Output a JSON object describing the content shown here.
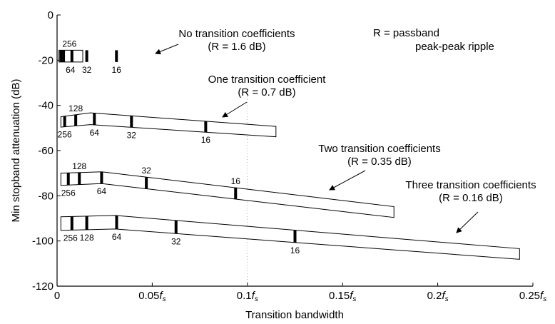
{
  "chart_data": {
    "type": "area",
    "xlabel": "Transition bandwidth",
    "ylabel": "Min stopband attenuation (dB)",
    "xlim": [
      0,
      0.25
    ],
    "ylim": [
      -120,
      0
    ],
    "grid": false,
    "x_ticks": [
      {
        "value": 0,
        "base": "0",
        "suffix": ""
      },
      {
        "value": 0.05,
        "base": "0.05",
        "suffix": "f"
      },
      {
        "value": 0.1,
        "base": "0.1",
        "suffix": "f"
      },
      {
        "value": 0.15,
        "base": "0.15",
        "suffix": "f"
      },
      {
        "value": 0.2,
        "base": "0.2",
        "suffix": "f"
      },
      {
        "value": 0.25,
        "base": "0.25",
        "suffix": "f"
      }
    ],
    "x_tick_subscript": "s",
    "y_ticks": [
      0,
      -20,
      -40,
      -60,
      -80,
      -100,
      -120
    ],
    "series": [
      {
        "name": "No transition coefficients",
        "ripple": "(R = 1.6 dB)",
        "upper": [
          [
            0.001,
            -15.6
          ],
          [
            0.0135,
            -15.6
          ]
        ],
        "lower": [
          [
            0.001,
            -20.8
          ],
          [
            0.0135,
            -20.8
          ]
        ],
        "markers": [
          {
            "label": "256",
            "x": 0.002
          },
          {
            "label": null,
            "x": 0.0034
          },
          {
            "label": "64",
            "x": 0.0078
          },
          {
            "label": "32",
            "x": 0.0156
          },
          {
            "label": "16",
            "x": 0.0312
          }
        ]
      },
      {
        "name": "One transition coefficient",
        "ripple": "(R = 0.7 dB)",
        "upper": [
          [
            0.002,
            -45
          ],
          [
            0.0175,
            -43.3
          ],
          [
            0.115,
            -49.3
          ]
        ],
        "lower": [
          [
            0.002,
            -49.6
          ],
          [
            0.0175,
            -48.5
          ],
          [
            0.115,
            -53.9
          ]
        ],
        "markers": [
          {
            "label": "256",
            "x": 0.004
          },
          {
            "label": "128",
            "x": 0.0098
          },
          {
            "label": "64",
            "x": 0.0196
          },
          {
            "label": "32",
            "x": 0.0391
          },
          {
            "label": "16",
            "x": 0.0781
          }
        ]
      },
      {
        "name": "Two transition coefficients",
        "ripple": "(R = 0.35 dB)",
        "upper": [
          [
            0.002,
            -70
          ],
          [
            0.0235,
            -69.4
          ],
          [
            0.177,
            -84.8
          ]
        ],
        "lower": [
          [
            0.002,
            -75.4
          ],
          [
            0.0235,
            -74.6
          ],
          [
            0.177,
            -89.6
          ]
        ],
        "markers": [
          {
            "label": "256",
            "x": 0.0059
          },
          {
            "label": "128",
            "x": 0.0117
          },
          {
            "label": "64",
            "x": 0.0234
          },
          {
            "label": "32",
            "x": 0.0469
          },
          {
            "label": "16",
            "x": 0.0938
          }
        ]
      },
      {
        "name": "Three transition coefficients",
        "ripple": "(R = 0.16 dB)",
        "upper": [
          [
            0.002,
            -89.3
          ],
          [
            0.0305,
            -88.7
          ],
          [
            0.243,
            -103.4
          ]
        ],
        "lower": [
          [
            0.002,
            -95.3
          ],
          [
            0.0305,
            -94.7
          ],
          [
            0.243,
            -108.1
          ]
        ],
        "markers": [
          {
            "label": "256",
            "x": 0.0078
          },
          {
            "label": "128",
            "x": 0.0156
          },
          {
            "label": "64",
            "x": 0.0313
          },
          {
            "label": "32",
            "x": 0.0625
          },
          {
            "label": "16",
            "x": 0.125
          }
        ]
      }
    ],
    "legend_note": {
      "line1": "R = passband",
      "line2": "peak-peak ripple"
    }
  }
}
